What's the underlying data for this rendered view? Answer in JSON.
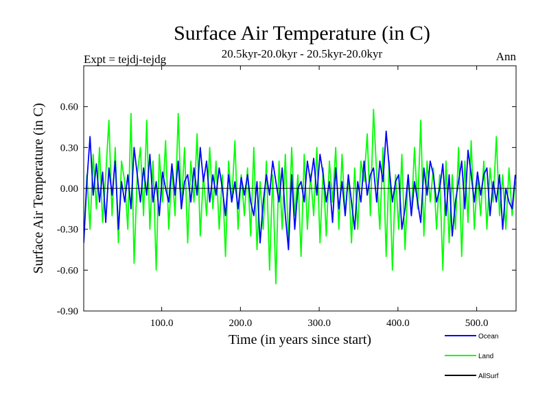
{
  "chart_data": {
    "type": "line",
    "title": "Surface Air Temperature (in C)",
    "subtitle": "20.5kyr-20.0kyr - 20.5kyr-20.0kyr",
    "left_label": "Expt = tejdj-tejdg",
    "right_label": "Ann",
    "xlabel": "Time (in years since start)",
    "ylabel": "Surface Air Temperature (in C)",
    "xlim": [
      1,
      550
    ],
    "ylim": [
      -0.9,
      0.9
    ],
    "x_ticks": [
      100,
      200,
      300,
      400,
      500
    ],
    "x_tick_labels": [
      "100.0",
      "200.0",
      "300.0",
      "400.0",
      "500.0"
    ],
    "y_ticks": [
      -0.9,
      -0.6,
      -0.3,
      0.0,
      0.3,
      0.6
    ],
    "y_tick_labels": [
      "-0.90",
      "-0.60",
      "-0.30",
      "0.00",
      "0.30",
      "0.60"
    ],
    "zero_line": 0.0,
    "legend_position": "bottom-right, below plot",
    "series": [
      {
        "name": "Ocean",
        "color": "#0000ff",
        "x": [
          1,
          5,
          9,
          13,
          17,
          21,
          25,
          29,
          33,
          37,
          41,
          45,
          49,
          53,
          57,
          61,
          65,
          69,
          73,
          77,
          81,
          85,
          89,
          93,
          97,
          101,
          105,
          109,
          113,
          117,
          121,
          125,
          129,
          133,
          137,
          141,
          145,
          149,
          153,
          157,
          161,
          165,
          169,
          173,
          177,
          181,
          185,
          189,
          193,
          197,
          201,
          205,
          209,
          213,
          217,
          221,
          225,
          229,
          233,
          237,
          241,
          245,
          249,
          253,
          257,
          261,
          265,
          269,
          273,
          277,
          281,
          285,
          289,
          293,
          297,
          301,
          305,
          309,
          313,
          317,
          321,
          325,
          329,
          333,
          337,
          341,
          345,
          349,
          353,
          357,
          361,
          365,
          369,
          373,
          377,
          381,
          385,
          389,
          393,
          397,
          401,
          405,
          409,
          413,
          417,
          421,
          425,
          429,
          433,
          437,
          441,
          445,
          449,
          453,
          457,
          461,
          465,
          469,
          473,
          477,
          481,
          485,
          489,
          493,
          497,
          501,
          505,
          509,
          513,
          517,
          521,
          525,
          529,
          533,
          537,
          541,
          545,
          549
        ],
        "values": [
          -0.4,
          0.05,
          0.38,
          -0.05,
          0.18,
          -0.1,
          0.12,
          -0.25,
          0.15,
          -0.05,
          0.2,
          -0.3,
          0.05,
          -0.1,
          0.1,
          -0.15,
          0.3,
          0.1,
          -0.1,
          0.15,
          -0.05,
          0.25,
          -0.1,
          0.05,
          -0.2,
          0.12,
          0.0,
          -0.1,
          0.18,
          -0.05,
          0.2,
          -0.15,
          0.05,
          0.1,
          -0.1,
          0.15,
          -0.05,
          0.3,
          0.05,
          0.2,
          -0.1,
          0.1,
          -0.05,
          0.15,
          0.0,
          -0.2,
          0.1,
          -0.1,
          0.05,
          -0.15,
          0.08,
          -0.05,
          0.1,
          -0.1,
          -0.2,
          0.05,
          -0.4,
          -0.1,
          0.1,
          -0.05,
          0.2,
          0.05,
          -0.1,
          0.15,
          -0.2,
          -0.45,
          0.1,
          -0.3,
          0.0,
          0.05,
          -0.1,
          0.2,
          0.05,
          0.22,
          -0.05,
          0.25,
          0.1,
          -0.1,
          0.05,
          -0.25,
          0.15,
          -0.15,
          0.05,
          -0.2,
          0.1,
          -0.1,
          -0.3,
          0.05,
          -0.1,
          0.2,
          -0.05,
          0.1,
          0.15,
          -0.1,
          0.2,
          0.05,
          0.42,
          0.15,
          -0.1,
          0.05,
          0.1,
          -0.3,
          -0.15,
          0.1,
          -0.2,
          0.05,
          -0.1,
          -0.25,
          0.15,
          -0.05,
          0.2,
          0.1,
          -0.1,
          0.0,
          0.18,
          -0.2,
          0.1,
          -0.35,
          -0.1,
          0.05,
          0.2,
          -0.15,
          0.28,
          0.1,
          -0.1,
          0.12,
          -0.05,
          0.1,
          0.15,
          -0.2,
          0.05,
          -0.1,
          0.1,
          -0.3,
          0.0,
          -0.1,
          -0.15,
          0.1
        ]
      },
      {
        "name": "Land",
        "color": "#00ff00",
        "x": [
          1,
          5,
          9,
          13,
          17,
          21,
          25,
          29,
          33,
          37,
          41,
          45,
          49,
          53,
          57,
          61,
          65,
          69,
          73,
          77,
          81,
          85,
          89,
          93,
          97,
          101,
          105,
          109,
          113,
          117,
          121,
          125,
          129,
          133,
          137,
          141,
          145,
          149,
          153,
          157,
          161,
          165,
          169,
          173,
          177,
          181,
          185,
          189,
          193,
          197,
          201,
          205,
          209,
          213,
          217,
          221,
          225,
          229,
          233,
          237,
          241,
          245,
          249,
          253,
          257,
          261,
          265,
          269,
          273,
          277,
          281,
          285,
          289,
          293,
          297,
          301,
          305,
          309,
          313,
          317,
          321,
          325,
          329,
          333,
          337,
          341,
          345,
          349,
          353,
          357,
          361,
          365,
          369,
          373,
          377,
          381,
          385,
          389,
          393,
          397,
          401,
          405,
          409,
          413,
          417,
          421,
          425,
          429,
          433,
          437,
          441,
          445,
          449,
          453,
          457,
          461,
          465,
          469,
          473,
          477,
          481,
          485,
          489,
          493,
          497,
          501,
          505,
          509,
          513,
          517,
          521,
          525,
          529,
          533,
          537,
          541,
          545,
          549
        ],
        "values": [
          -0.4,
          0.1,
          -0.3,
          0.25,
          -0.15,
          0.3,
          -0.25,
          0.1,
          0.5,
          -0.2,
          0.3,
          -0.4,
          0.2,
          0.05,
          -0.3,
          0.55,
          -0.55,
          0.1,
          0.3,
          -0.2,
          0.5,
          -0.3,
          0.2,
          -0.6,
          0.25,
          -0.1,
          0.35,
          -0.3,
          0.15,
          -0.2,
          0.55,
          -0.15,
          0.3,
          -0.4,
          0.2,
          -0.1,
          0.4,
          -0.35,
          0.1,
          -0.2,
          0.3,
          -0.15,
          0.2,
          -0.3,
          0.1,
          -0.5,
          0.2,
          -0.1,
          0.35,
          -0.3,
          0.1,
          -0.2,
          0.15,
          -0.35,
          0.3,
          -0.45,
          0.05,
          -0.3,
          0.2,
          -0.6,
          0.1,
          -0.7,
          0.2,
          -0.3,
          0.25,
          -0.4,
          0.3,
          -0.2,
          0.1,
          -0.5,
          0.25,
          -0.3,
          0.1,
          -0.2,
          0.3,
          -0.4,
          0.15,
          -0.35,
          0.2,
          -0.1,
          0.3,
          -0.3,
          0.25,
          -0.2,
          0.1,
          -0.4,
          0.15,
          -0.3,
          0.2,
          0.05,
          0.4,
          -0.2,
          0.58,
          0.1,
          -0.3,
          0.3,
          -0.5,
          0.2,
          -0.6,
          0.1,
          -0.3,
          0.25,
          -0.45,
          0.1,
          -0.2,
          0.3,
          -0.15,
          0.5,
          -0.35,
          0.2,
          -0.1,
          0.15,
          -0.3,
          0.1,
          -0.6,
          0.2,
          -0.4,
          0.1,
          -0.3,
          0.3,
          -0.5,
          0.2,
          -0.25,
          0.35,
          -0.3,
          0.1,
          -0.2,
          0.2,
          -0.3,
          0.15,
          -0.1,
          0.38,
          -0.2,
          0.1,
          -0.3,
          0.15,
          -0.2,
          0.05
        ]
      },
      {
        "name": "AllSurf",
        "color": "#000000",
        "x": [],
        "values": []
      }
    ]
  }
}
